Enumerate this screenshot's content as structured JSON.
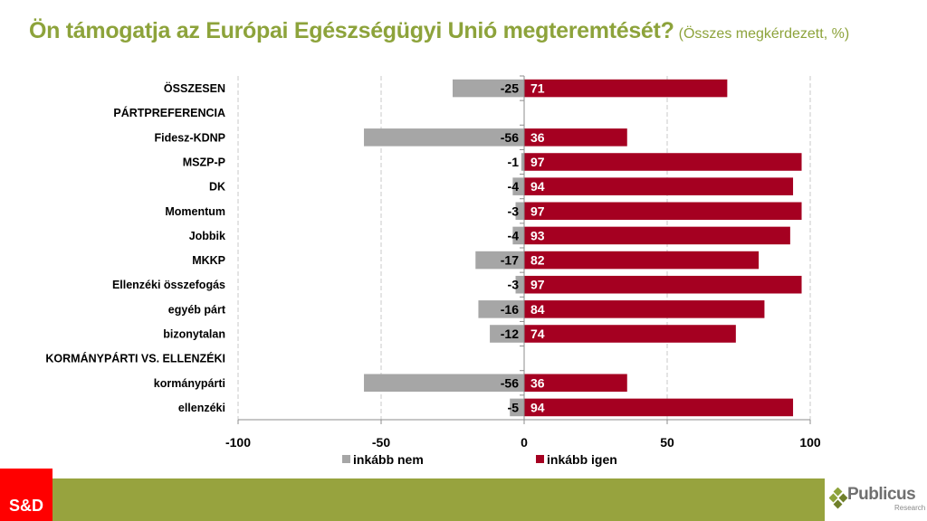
{
  "title": {
    "main": "Ön támogatja az Európai Egészségügyi Unió megteremtését?",
    "sub": "(Összes megkérdezett, %)"
  },
  "chart_data": {
    "type": "bar",
    "orientation": "horizontal-diverging",
    "title": "Ön támogatja az Európai Egészségügyi Unió megteremtését?",
    "subtitle": "(Összes megkérdezett, %)",
    "categories": [
      "ÖSSZESEN",
      "PÁRTPREFERENCIA",
      "Fidesz-KDNP",
      "MSZP-P",
      "DK",
      "Momentum",
      "Jobbik",
      "MKKP",
      "Ellenzéki összefogás",
      "egyéb párt",
      "bizonytalan",
      "KORMÁNYPÁRTI VS. ELLENZÉKI",
      "kormánypárti",
      "ellenzéki"
    ],
    "series": [
      {
        "name": "inkább nem",
        "color": "#a6a6a6",
        "values": [
          -25,
          null,
          -56,
          -1,
          -4,
          -3,
          -4,
          -17,
          -3,
          -16,
          -12,
          null,
          -56,
          -5
        ]
      },
      {
        "name": "inkább igen",
        "color": "#a50021",
        "values": [
          71,
          null,
          36,
          97,
          94,
          97,
          93,
          82,
          97,
          84,
          74,
          null,
          36,
          94
        ]
      }
    ],
    "xlim": [
      -100,
      100
    ],
    "xticks": [
      "-100",
      "-50",
      "0",
      "50",
      "100"
    ],
    "xtick_values": [
      -100,
      -50,
      0,
      50,
      100
    ],
    "grid": true,
    "legend": "bottom"
  },
  "footer": {
    "left_logo": "S&D",
    "right_logo": "Publicus",
    "right_logo_sub": "Research"
  }
}
